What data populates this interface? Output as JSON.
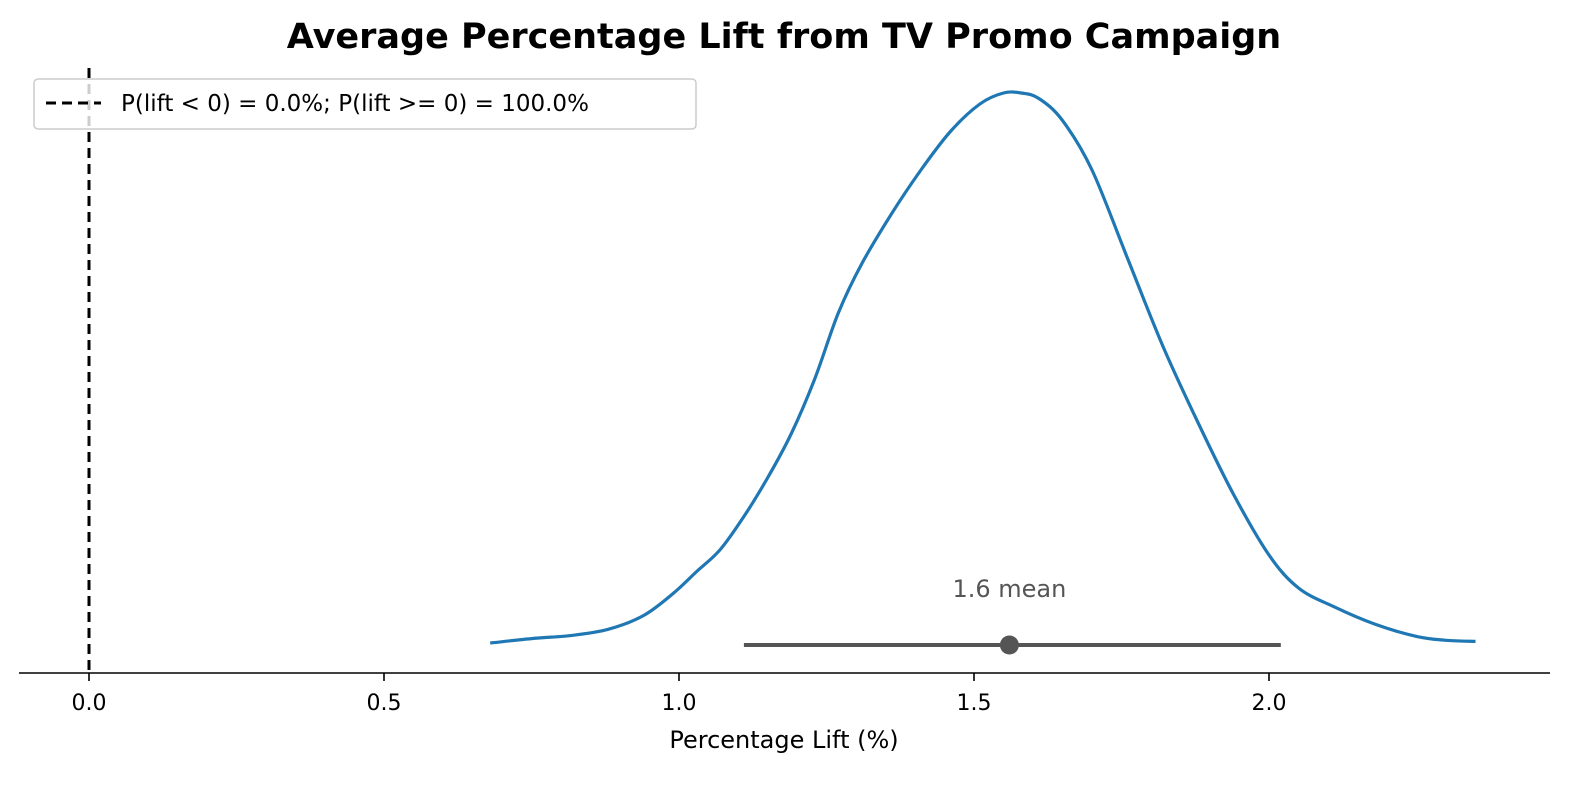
{
  "chart_data": {
    "type": "line",
    "title": "Average Percentage Lift from TV Promo Campaign",
    "xlabel": "Percentage Lift (%)",
    "ylabel": "",
    "xlim": [
      -0.12,
      2.47
    ],
    "ylim": [
      -0.05,
      1.05
    ],
    "xticks": [
      0.0,
      0.5,
      1.0,
      1.5,
      2.0
    ],
    "xtick_labels": [
      "0.0",
      "0.5",
      "1.0",
      "1.5",
      "2.0"
    ],
    "grid": false,
    "legend": {
      "position": "top-left",
      "entries": [
        {
          "label": "P(lift < 0) = 0.0%; P(lift >= 0) = 100.0%",
          "style": "dashed",
          "color": "#000000"
        }
      ]
    },
    "reference_line": {
      "x": 0.0,
      "style": "dashed",
      "color": "#000000"
    },
    "series": [
      {
        "color": "#1f77b4",
        "x": [
          0.68,
          0.75,
          0.82,
          0.88,
          0.94,
          0.99,
          1.03,
          1.07,
          1.11,
          1.15,
          1.19,
          1.23,
          1.27,
          1.31,
          1.36,
          1.41,
          1.46,
          1.51,
          1.55,
          1.58,
          1.61,
          1.65,
          1.7,
          1.76,
          1.82,
          1.88,
          1.94,
          2.0,
          2.05,
          2.11,
          2.18,
          2.25,
          2.3,
          2.35
        ],
        "y": [
          0.0,
          0.008,
          0.014,
          0.025,
          0.05,
          0.09,
          0.13,
          0.17,
          0.23,
          0.3,
          0.38,
          0.48,
          0.6,
          0.69,
          0.78,
          0.86,
          0.93,
          0.98,
          1.0,
          1.0,
          0.99,
          0.95,
          0.86,
          0.7,
          0.54,
          0.4,
          0.27,
          0.16,
          0.1,
          0.066,
          0.034,
          0.012,
          0.005,
          0.003
        ]
      }
    ],
    "interval": {
      "low": 1.11,
      "high": 2.02,
      "point": 1.56,
      "label": "1.6 mean",
      "color": "#555555"
    }
  }
}
